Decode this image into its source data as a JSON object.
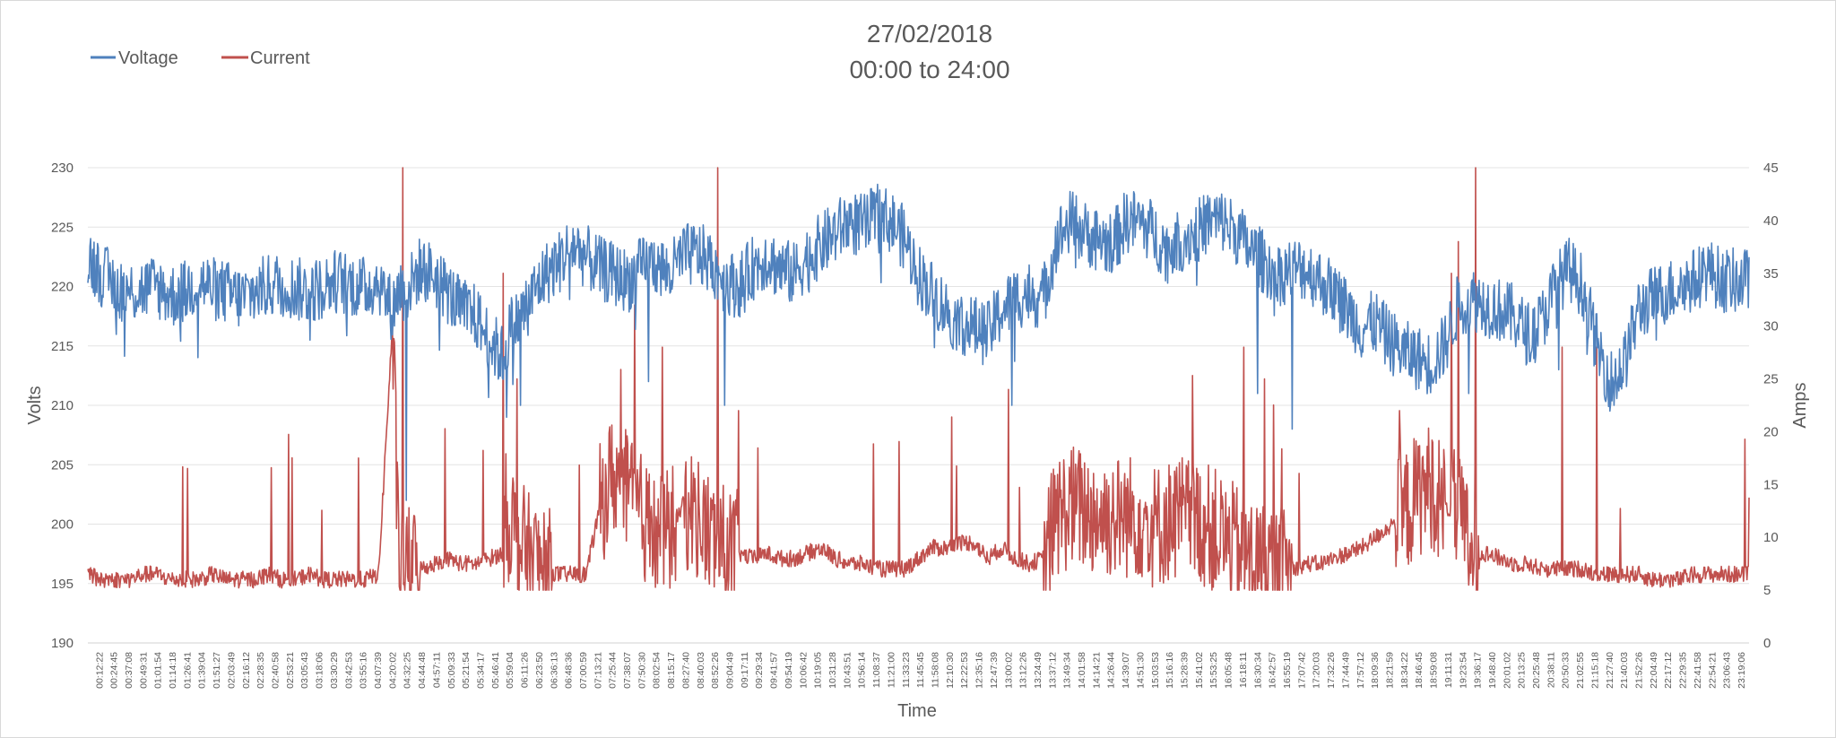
{
  "chart_data": {
    "type": "line",
    "title": [
      "27/02/2018",
      "00:00 to 24:00"
    ],
    "xlabel": "Time",
    "ylabel": "Volts",
    "y2label": "Amps",
    "ylim": [
      190,
      230
    ],
    "y2lim": [
      0,
      45
    ],
    "yticks": [
      190,
      195,
      200,
      205,
      210,
      215,
      220,
      225,
      230
    ],
    "y2ticks": [
      0,
      5,
      10,
      15,
      20,
      25,
      30,
      35,
      40,
      45
    ],
    "grid": true,
    "legend_position": "top-left",
    "x_tick_labels": [
      "00:12:22",
      "00:24:45",
      "00:37:08",
      "00:49:31",
      "01:01:54",
      "01:14:18",
      "01:26:41",
      "01:39:04",
      "01:51:27",
      "02:03:49",
      "02:16:12",
      "02:28:35",
      "02:40:58",
      "02:53:21",
      "03:05:43",
      "03:18:06",
      "03:30:29",
      "03:42:53",
      "03:55:16",
      "04:07:39",
      "04:20:02",
      "04:32:25",
      "04:44:48",
      "04:57:11",
      "05:09:33",
      "05:21:54",
      "05:34:17",
      "05:46:41",
      "05:59:04",
      "06:11:26",
      "06:23:50",
      "06:36:13",
      "06:48:36",
      "07:00:59",
      "07:13:21",
      "07:25:44",
      "07:38:07",
      "07:50:30",
      "08:02:54",
      "08:15:17",
      "08:27:40",
      "08:40:03",
      "08:52:26",
      "09:04:49",
      "09:17:11",
      "09:29:34",
      "09:41:57",
      "09:54:19",
      "10:06:42",
      "10:19:05",
      "10:31:28",
      "10:43:51",
      "10:56:14",
      "11:08:37",
      "11:21:00",
      "11:33:23",
      "11:45:45",
      "11:58:08",
      "12:10:30",
      "12:22:53",
      "12:35:16",
      "12:47:39",
      "13:00:02",
      "13:12:26",
      "13:24:49",
      "13:37:12",
      "13:49:34",
      "14:01:58",
      "14:14:21",
      "14:26:44",
      "14:39:07",
      "14:51:30",
      "15:03:53",
      "15:16:16",
      "15:28:39",
      "15:41:02",
      "15:53:25",
      "16:05:48",
      "16:18:11",
      "16:30:34",
      "16:42:57",
      "16:55:19",
      "17:07:42",
      "17:20:03",
      "17:32:26",
      "17:44:49",
      "17:57:12",
      "18:09:36",
      "18:21:59",
      "18:34:22",
      "18:46:45",
      "18:59:08",
      "19:11:31",
      "19:23:54",
      "19:36:17",
      "19:48:40",
      "20:01:02",
      "20:13:25",
      "20:25:48",
      "20:38:11",
      "20:50:33",
      "21:02:55",
      "21:15:18",
      "21:27:40",
      "21:40:03",
      "21:52:26",
      "22:04:49",
      "22:17:12",
      "22:29:35",
      "22:41:58",
      "22:54:21",
      "23:06:43",
      "23:19:06"
    ],
    "series": [
      {
        "name": "Voltage",
        "axis": "left",
        "color": "#4f81bd",
        "x_hours": [
          0.0,
          0.2,
          0.4,
          0.6,
          0.8,
          1.0,
          1.2,
          1.4,
          1.6,
          1.8,
          2.0,
          2.2,
          2.4,
          2.6,
          2.8,
          3.0,
          3.2,
          3.4,
          3.6,
          3.8,
          4.0,
          4.2,
          4.4,
          4.5,
          4.6,
          4.7,
          4.8,
          5.0,
          5.2,
          5.4,
          5.6,
          5.8,
          6.0,
          6.1,
          6.2,
          6.4,
          6.6,
          6.8,
          7.0,
          7.2,
          7.4,
          7.6,
          7.8,
          8.0,
          8.2,
          8.4,
          8.6,
          8.8,
          9.0,
          9.2,
          9.4,
          9.6,
          9.8,
          10.0,
          10.2,
          10.4,
          10.6,
          10.8,
          11.0,
          11.2,
          11.4,
          11.6,
          11.8,
          12.0,
          12.2,
          12.4,
          12.6,
          12.8,
          13.0,
          13.2,
          13.4,
          13.6,
          13.8,
          14.0,
          14.2,
          14.4,
          14.6,
          14.8,
          15.0,
          15.2,
          15.4,
          15.6,
          15.8,
          16.0,
          16.2,
          16.4,
          16.6,
          16.8,
          17.0,
          17.2,
          17.4,
          17.6,
          17.8,
          18.0,
          18.2,
          18.4,
          18.6,
          18.8,
          19.0,
          19.2,
          19.4,
          19.6,
          19.8,
          20.0,
          20.2,
          20.4,
          20.6,
          20.8,
          21.0,
          21.2,
          21.4,
          21.6,
          21.8,
          22.0,
          22.2,
          22.4,
          22.6,
          22.8,
          23.0,
          23.2,
          23.4,
          23.6
        ],
        "values": [
          222.5,
          221,
          220,
          219.5,
          219.8,
          220,
          219.2,
          219.5,
          220.5,
          219.8,
          219.5,
          219,
          219.5,
          220,
          220.3,
          219.8,
          219.5,
          220,
          220.5,
          220.2,
          219.8,
          220.5,
          218,
          220,
          219.5,
          220.5,
          221.5,
          221,
          219.5,
          218,
          217.5,
          215.5,
          214,
          216.5,
          217,
          219,
          221,
          222,
          223.5,
          222.5,
          221.5,
          221,
          220.5,
          221.5,
          222,
          221,
          222.5,
          222.8,
          222,
          220.5,
          220,
          221.5,
          222.5,
          221.5,
          221,
          222.5,
          223.5,
          224.5,
          225.5,
          225,
          226,
          225.5,
          224,
          221,
          219.5,
          218,
          217,
          216.5,
          216,
          218,
          219,
          219.5,
          219,
          224,
          225.5,
          224.5,
          224,
          223.5,
          225.5,
          225.5,
          224.5,
          223,
          224,
          224.5,
          225.5,
          225.5,
          224.5,
          223,
          222,
          221,
          221.5,
          221.5,
          220.5,
          219.5,
          218,
          216.5,
          217,
          215.5,
          214.5,
          214,
          213.5,
          215,
          218.5,
          219,
          218.5,
          218,
          217.5,
          216,
          217,
          220,
          221.5,
          220,
          215,
          212,
          213.5,
          218,
          219,
          219.5,
          220,
          220.5,
          221.5,
          220.5
        ]
      },
      {
        "name": "Current",
        "axis": "right",
        "color": "#c0504d",
        "x_hours": [
          0.0,
          0.2,
          0.4,
          0.6,
          0.8,
          1.0,
          1.2,
          1.4,
          1.6,
          1.8,
          2.0,
          2.2,
          2.4,
          2.6,
          2.8,
          3.0,
          3.2,
          3.4,
          3.6,
          3.8,
          4.0,
          4.2,
          4.4,
          4.5,
          4.6,
          4.7,
          4.8,
          5.0,
          5.2,
          5.4,
          5.6,
          5.8,
          6.0,
          6.1,
          6.2,
          6.4,
          6.6,
          6.8,
          7.0,
          7.2,
          7.4,
          7.6,
          7.8,
          8.0,
          8.2,
          8.4,
          8.6,
          8.8,
          9.0,
          9.2,
          9.4,
          9.6,
          9.8,
          10.0,
          10.2,
          10.4,
          10.6,
          10.8,
          11.0,
          11.2,
          11.4,
          11.6,
          11.8,
          12.0,
          12.2,
          12.4,
          12.6,
          12.8,
          13.0,
          13.2,
          13.4,
          13.6,
          13.8,
          14.0,
          14.2,
          14.4,
          14.6,
          14.8,
          15.0,
          15.2,
          15.4,
          15.6,
          15.8,
          16.0,
          16.2,
          16.4,
          16.6,
          16.8,
          17.0,
          17.2,
          17.4,
          17.6,
          17.8,
          18.0,
          18.2,
          18.4,
          18.6,
          18.8,
          19.0,
          19.2,
          19.4,
          19.6,
          19.8,
          20.0,
          20.2,
          20.4,
          20.6,
          20.8,
          21.0,
          21.2,
          21.4,
          21.6,
          21.8,
          22.0,
          22.2,
          22.4,
          22.6,
          22.8,
          23.0,
          23.2,
          23.4,
          23.6
        ],
        "values": [
          6.5,
          6,
          6,
          6,
          6.5,
          6.5,
          6,
          6,
          6,
          6.5,
          6,
          6,
          6,
          6.5,
          6,
          6,
          6.5,
          6,
          6,
          6,
          6,
          6.5,
          30,
          6.5,
          7,
          7,
          7,
          7.5,
          8,
          7.5,
          7.5,
          8,
          8.5,
          12,
          10,
          8,
          7,
          6.5,
          6.5,
          6.5,
          13,
          16,
          14,
          12,
          10,
          10.5,
          13,
          12,
          10,
          9,
          8.5,
          8,
          8.5,
          8,
          8,
          8.5,
          9,
          8,
          7.5,
          7.5,
          7,
          7,
          7,
          8,
          9,
          9,
          9.5,
          9.5,
          8,
          9,
          8,
          7.5,
          8,
          12,
          13,
          12.5,
          12,
          12,
          12,
          12,
          11,
          11.5,
          12,
          11.5,
          11,
          10,
          9,
          8,
          7.5,
          7,
          7,
          7.5,
          7.5,
          8,
          8.5,
          9,
          10,
          11,
          12,
          14,
          15,
          13,
          12,
          8.5,
          8.5,
          8,
          7.5,
          7.5,
          7,
          7,
          7,
          7,
          6.5,
          6.5,
          6.5,
          6.5,
          6,
          6,
          6,
          6.5,
          6.5,
          6.5
        ]
      }
    ],
    "current_spikes": [
      {
        "x_hours": 4.55,
        "value": 45
      },
      {
        "x_hours": 6.0,
        "value": 35
      },
      {
        "x_hours": 6.2,
        "value": 25
      },
      {
        "x_hours": 7.9,
        "value": 32
      },
      {
        "x_hours": 8.3,
        "value": 28
      },
      {
        "x_hours": 9.1,
        "value": 45
      },
      {
        "x_hours": 9.4,
        "value": 22
      },
      {
        "x_hours": 13.3,
        "value": 24
      },
      {
        "x_hours": 16.7,
        "value": 28
      },
      {
        "x_hours": 17.0,
        "value": 25
      },
      {
        "x_hours": 18.95,
        "value": 22
      },
      {
        "x_hours": 19.7,
        "value": 35
      },
      {
        "x_hours": 19.8,
        "value": 38
      },
      {
        "x_hours": 20.05,
        "value": 45
      },
      {
        "x_hours": 21.3,
        "value": 28
      },
      {
        "x_hours": 21.8,
        "value": 28
      }
    ],
    "voltage_dips": [
      {
        "x_hours": 4.6,
        "value": 202
      },
      {
        "x_hours": 6.05,
        "value": 209
      },
      {
        "x_hours": 6.25,
        "value": 210
      },
      {
        "x_hours": 8.1,
        "value": 212
      },
      {
        "x_hours": 9.2,
        "value": 210
      },
      {
        "x_hours": 13.35,
        "value": 210
      },
      {
        "x_hours": 16.9,
        "value": 211
      },
      {
        "x_hours": 17.4,
        "value": 208
      },
      {
        "x_hours": 19.95,
        "value": 211
      },
      {
        "x_hours": 21.25,
        "value": 213
      },
      {
        "x_hours": 22.05,
        "value": 210
      }
    ]
  }
}
